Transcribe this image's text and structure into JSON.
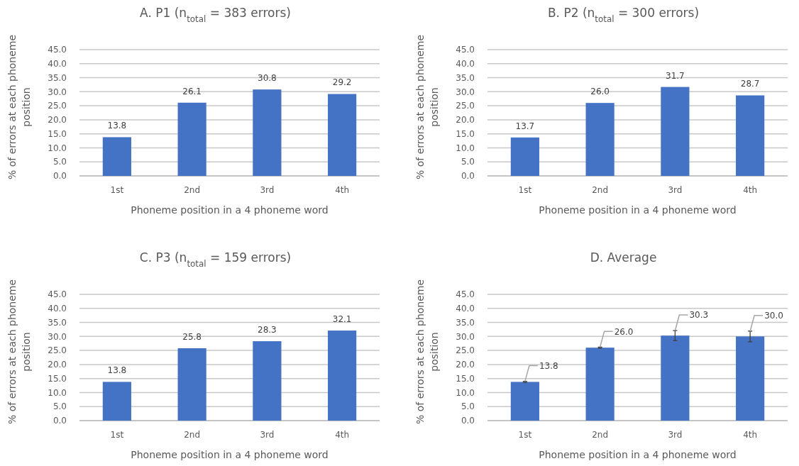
{
  "chart_data": [
    {
      "type": "bar",
      "title": "A. P1 (n$_{total}$ = 383 errors)",
      "xlabel": "Phoneme position in a 4 phoneme word",
      "ylabel": "% of errors at each phoneme position",
      "categories": [
        "1st",
        "2nd",
        "3rd",
        "4th"
      ],
      "values": [
        13.8,
        26.1,
        30.8,
        29.2
      ],
      "value_labels": [
        "13.8",
        "26.1",
        "30.8",
        "29.2"
      ],
      "color": "#4472c4",
      "ylim": [
        0,
        45
      ],
      "yticks": [
        {
          "value": 0,
          "label": "0.0"
        },
        {
          "value": 5,
          "label": "5.0"
        },
        {
          "value": 10,
          "label": "10.0"
        },
        {
          "value": 15,
          "label": "15.0"
        },
        {
          "value": 20,
          "label": "20.0"
        },
        {
          "value": 25,
          "label": "25.0"
        },
        {
          "value": 30,
          "label": "30.0"
        },
        {
          "value": 35,
          "label": "35.0"
        },
        {
          "value": 40,
          "label": "40.0"
        },
        {
          "value": 45,
          "label": "45.0"
        }
      ],
      "grid": "y"
    },
    {
      "type": "bar",
      "title": "B. P2 (n$_{total}$ = 300 errors)",
      "xlabel": "Phoneme position in a 4 phoneme word",
      "ylabel": "% of errors at each phoneme position",
      "categories": [
        "1st",
        "2nd",
        "3rd",
        "4th"
      ],
      "values": [
        13.7,
        26.0,
        31.7,
        28.7
      ],
      "value_labels": [
        "13.7",
        "26.0",
        "31.7",
        "28.7"
      ],
      "color": "#4472c4",
      "ylim": [
        0,
        45
      ],
      "yticks": [
        {
          "value": 0,
          "label": "0.0"
        },
        {
          "value": 5,
          "label": "5.0"
        },
        {
          "value": 10,
          "label": "10.0"
        },
        {
          "value": 15,
          "label": "15.0"
        },
        {
          "value": 20,
          "label": "20.0"
        },
        {
          "value": 25,
          "label": "25.0"
        },
        {
          "value": 30,
          "label": "30.0"
        },
        {
          "value": 35,
          "label": "35.0"
        },
        {
          "value": 40,
          "label": "40.0"
        },
        {
          "value": 45,
          "label": "45.0"
        }
      ],
      "grid": "y"
    },
    {
      "type": "bar",
      "title": "C. P3 (n$_{total}$ = 159 errors)",
      "xlabel": "Phoneme position in a 4 phoneme word",
      "ylabel": "% of errors at each phoneme position",
      "categories": [
        "1st",
        "2nd",
        "3rd",
        "4th"
      ],
      "values": [
        13.8,
        25.8,
        28.3,
        32.1
      ],
      "value_labels": [
        "13.8",
        "25.8",
        "28.3",
        "32.1"
      ],
      "color": "#4472c4",
      "ylim": [
        0,
        45
      ],
      "yticks": [
        {
          "value": 0,
          "label": "0.0"
        },
        {
          "value": 5,
          "label": "5.0"
        },
        {
          "value": 10,
          "label": "10.0"
        },
        {
          "value": 15,
          "label": "15.0"
        },
        {
          "value": 20,
          "label": "20.0"
        },
        {
          "value": 25,
          "label": "25.0"
        },
        {
          "value": 30,
          "label": "30.0"
        },
        {
          "value": 35,
          "label": "35.0"
        },
        {
          "value": 40,
          "label": "40.0"
        },
        {
          "value": 45,
          "label": "45.0"
        }
      ],
      "grid": "y"
    },
    {
      "type": "bar",
      "title": "D. Average",
      "xlabel": "Phoneme position in a 4 phoneme word",
      "ylabel": "% of errors at each phoneme position",
      "categories": [
        "1st",
        "2nd",
        "3rd",
        "4th"
      ],
      "values": [
        13.8,
        26.0,
        30.3,
        30.0
      ],
      "value_labels": [
        "13.8",
        "26.0",
        "30.3",
        "30.0"
      ],
      "errors": [
        0.2,
        0.2,
        1.8,
        1.9
      ],
      "color": "#4472c4",
      "ylim": [
        0,
        45
      ],
      "yticks": [
        {
          "value": 0,
          "label": "0.0"
        },
        {
          "value": 5,
          "label": "5.0"
        },
        {
          "value": 10,
          "label": "10.0"
        },
        {
          "value": 15,
          "label": "15.0"
        },
        {
          "value": 20,
          "label": "20.0"
        },
        {
          "value": 25,
          "label": "25.0"
        },
        {
          "value": 30,
          "label": "30.0"
        },
        {
          "value": 35,
          "label": "35.0"
        },
        {
          "value": 40,
          "label": "40.0"
        },
        {
          "value": 45,
          "label": "45.0"
        }
      ],
      "grid": "y"
    }
  ]
}
